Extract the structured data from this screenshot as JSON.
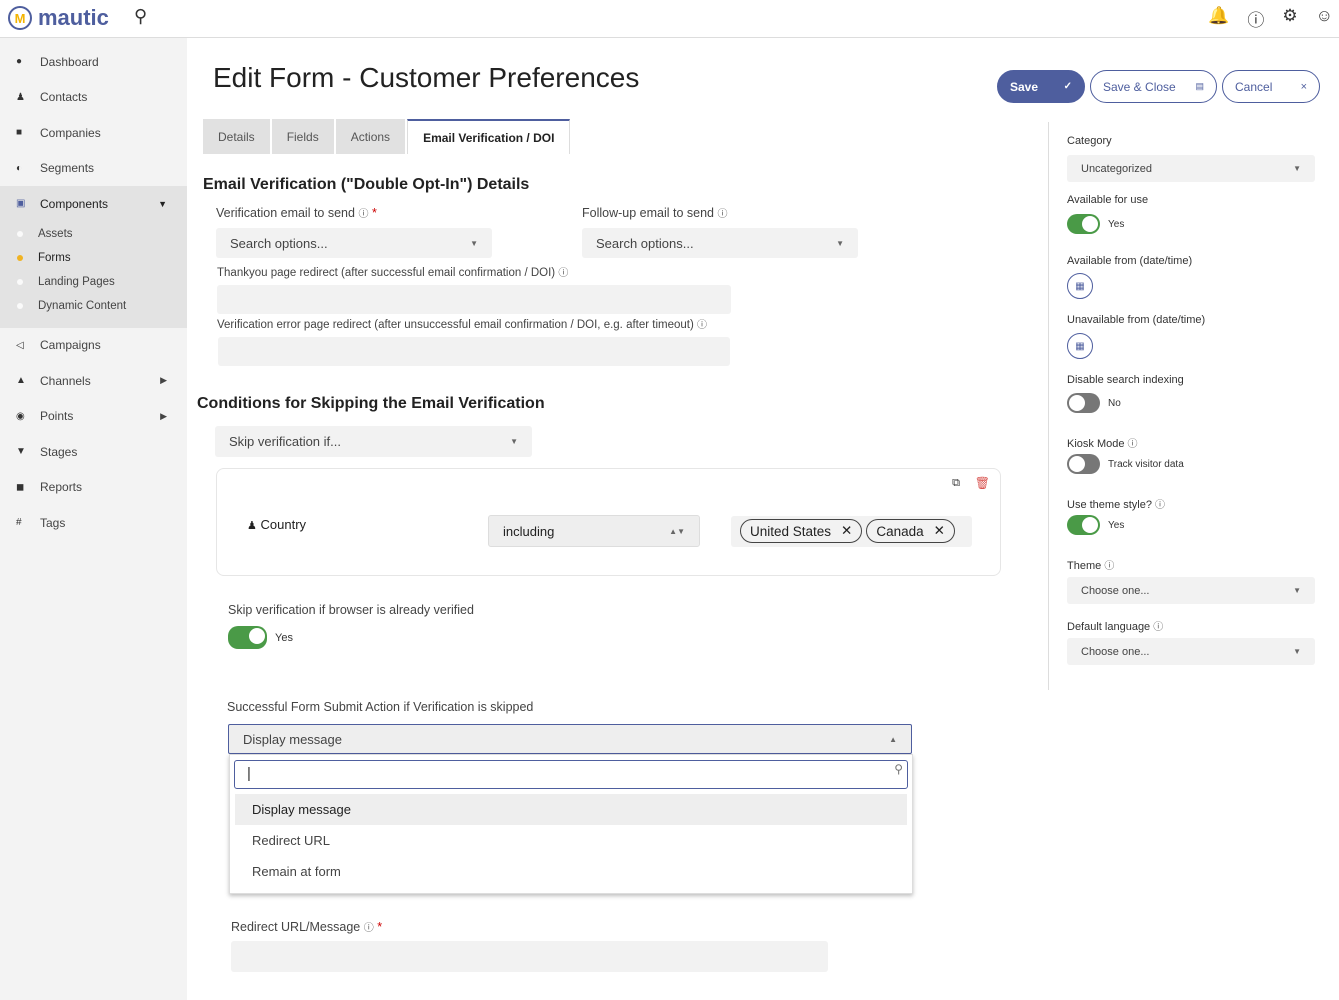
{
  "app": {
    "logo_text": "mautic",
    "logo_mark": "M"
  },
  "topbar": {
    "icons": [
      "search-icon",
      "bell-icon",
      "help-icon",
      "gear-icon",
      "user-icon"
    ]
  },
  "sidebar": {
    "items": [
      {
        "label": "Dashboard",
        "icon": "dashboard-icon"
      },
      {
        "label": "Contacts",
        "icon": "user-icon"
      },
      {
        "label": "Companies",
        "icon": "building-icon"
      },
      {
        "label": "Segments",
        "icon": "pie-icon"
      },
      {
        "label": "Components",
        "icon": "components-icon",
        "expanded": true,
        "children": [
          "Assets",
          "Forms",
          "Landing Pages",
          "Dynamic Content"
        ],
        "active_child": "Forms"
      },
      {
        "label": "Campaigns",
        "icon": "megaphone-icon"
      },
      {
        "label": "Channels",
        "icon": "channels-icon",
        "has_children": true
      },
      {
        "label": "Points",
        "icon": "points-icon",
        "has_children": true
      },
      {
        "label": "Stages",
        "icon": "filter-icon"
      },
      {
        "label": "Reports",
        "icon": "report-icon"
      },
      {
        "label": "Tags",
        "icon": "hash-icon"
      }
    ]
  },
  "page": {
    "title": "Edit Form - Customer Preferences"
  },
  "buttons": {
    "save": "Save",
    "save_close": "Save & Close",
    "cancel": "Cancel"
  },
  "tabs": [
    "Details",
    "Fields",
    "Actions",
    "Email Verification / DOI"
  ],
  "active_tab": "Email Verification / DOI",
  "doi": {
    "heading": "Email Verification (\"Double Opt-In\") Details",
    "verification_label": "Verification email to send",
    "verification_placeholder": "Search options...",
    "followup_label": "Follow-up email to send",
    "followup_placeholder": "Search options...",
    "thankyou_label": "Thankyou page redirect (after successful email confirmation / DOI)",
    "thankyou_value": "",
    "error_label": "Verification error page redirect (after unsuccessful email confirmation / DOI, e.g. after timeout)",
    "error_value": ""
  },
  "skip": {
    "heading": "Conditions for Skipping the Email Verification",
    "select": "Skip verification if...",
    "condition": {
      "field": "Country",
      "operator": "including",
      "values": [
        "United States",
        "Canada"
      ]
    },
    "browser_label": "Skip verification if browser is already verified",
    "browser_toggle": "Yes",
    "action_label": "Successful Form Submit Action if Verification is skipped",
    "action_value": "Display message",
    "search_value": "",
    "options": [
      "Display message",
      "Redirect URL",
      "Remain at form"
    ],
    "redirect_label": "Redirect URL/Message",
    "redirect_value": ""
  },
  "right": {
    "category_label": "Category",
    "category_value": "Uncategorized",
    "available_label": "Available for use",
    "available_value": "Yes",
    "from_label": "Available from (date/time)",
    "unavail_label": "Unavailable from (date/time)",
    "noindex_label": "Disable search indexing",
    "noindex_value": "No",
    "kiosk_label": "Kiosk Mode",
    "kiosk_value": "Track visitor data",
    "theme_style_label": "Use theme style?",
    "theme_style_value": "Yes",
    "theme_label": "Theme",
    "theme_value": "Choose one...",
    "lang_label": "Default language",
    "lang_value": "Choose one..."
  },
  "colors": {
    "primary": "#4e5e9e",
    "toggle_on": "#4a9a47",
    "active_dot": "#f0b323",
    "delete": "#d9534f"
  }
}
